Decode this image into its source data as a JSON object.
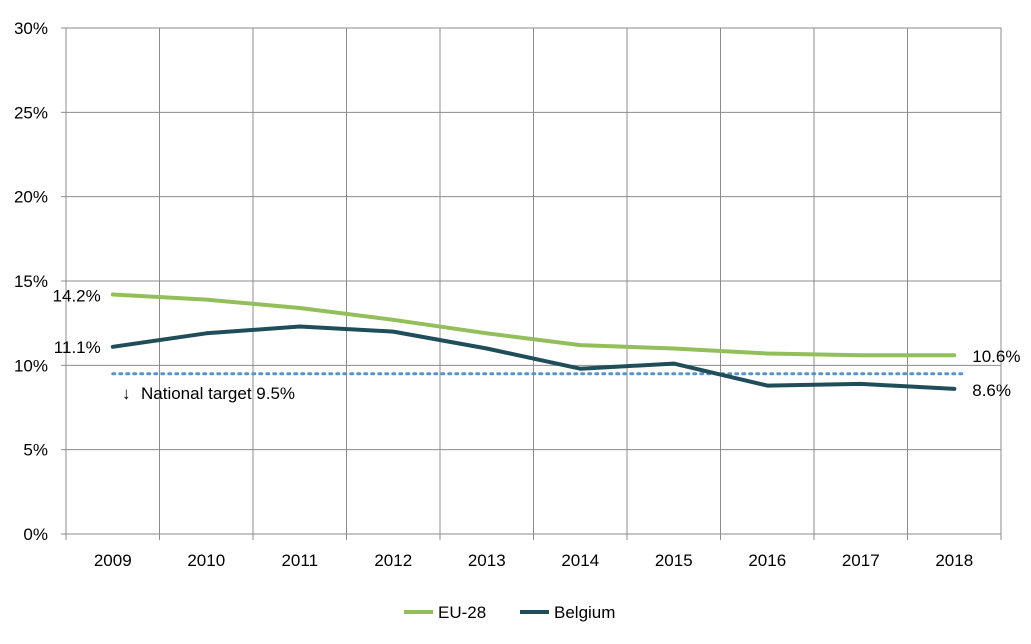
{
  "chart_data": {
    "type": "line",
    "title": "",
    "xlabel": "",
    "ylabel": "",
    "x": [
      "2009",
      "2010",
      "2011",
      "2012",
      "2013",
      "2014",
      "2015",
      "2016",
      "2017",
      "2018"
    ],
    "ylim": [
      0,
      30
    ],
    "y_ticks": [
      "0%",
      "5%",
      "10%",
      "15%",
      "20%",
      "25%",
      "30%"
    ],
    "grid": "vertical and horizontal",
    "legend_position": "bottom",
    "series": [
      {
        "name": "EU-28",
        "color": "#92bf5a",
        "values": [
          14.2,
          13.9,
          13.4,
          12.7,
          11.9,
          11.2,
          11.0,
          10.7,
          10.6,
          10.6
        ]
      },
      {
        "name": "Belgium",
        "color": "#1f4e5a",
        "values": [
          11.1,
          11.9,
          12.3,
          12.0,
          11.0,
          9.8,
          10.1,
          8.8,
          8.9,
          8.6
        ]
      }
    ],
    "data_labels": {
      "eu_start": "14.2%",
      "be_start": "11.1%",
      "eu_end": "10.6%",
      "be_end": "8.6%"
    },
    "target": {
      "value": 9.5,
      "label": "National target  9.5%",
      "arrow": "↓",
      "color": "#5b93c8"
    }
  }
}
